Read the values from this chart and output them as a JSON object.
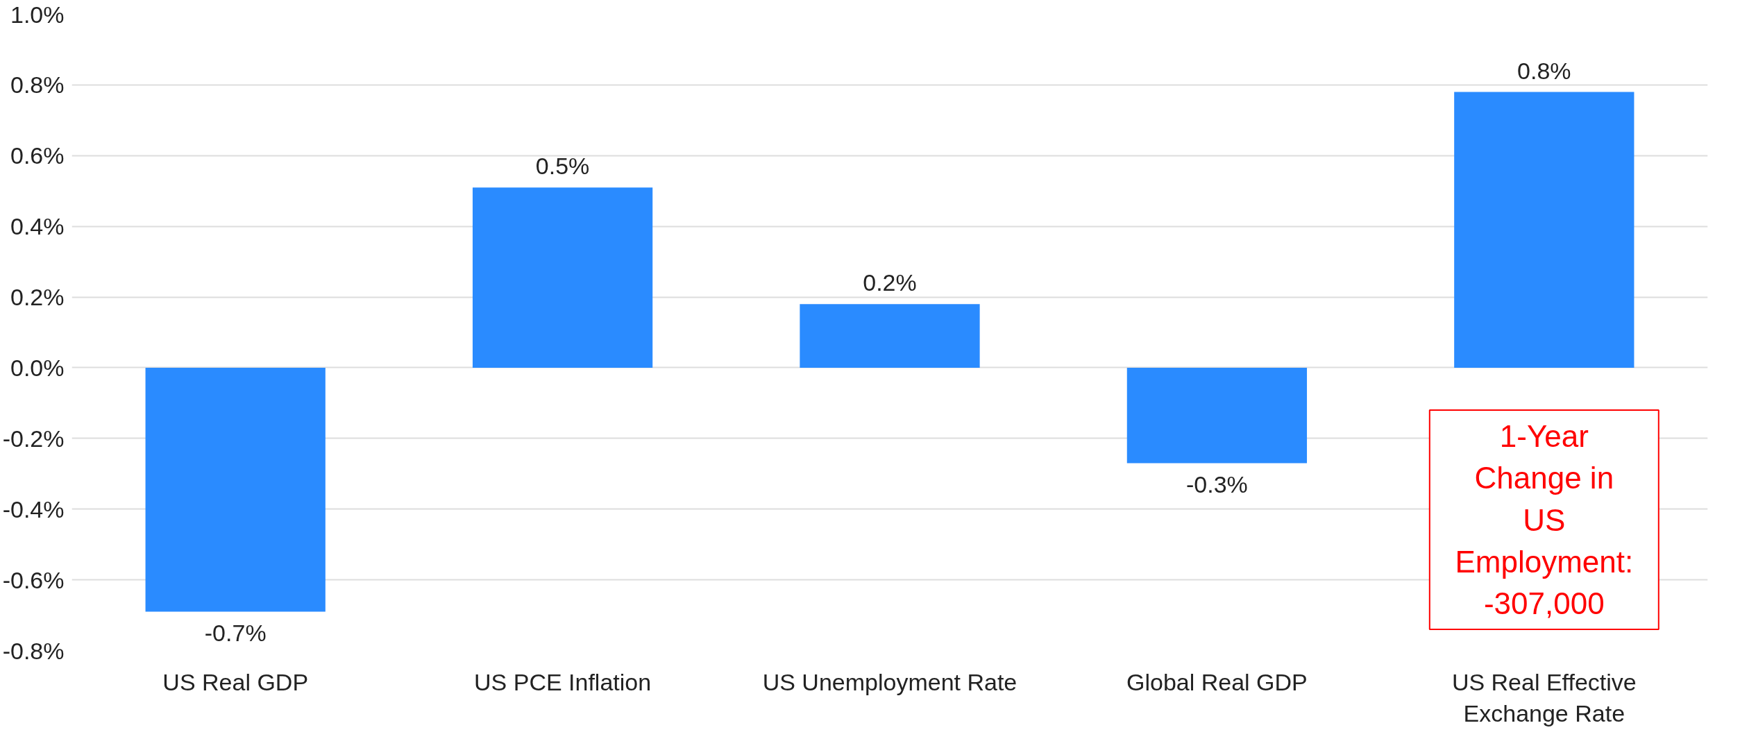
{
  "chart_data": {
    "type": "bar",
    "categories": [
      "US Real GDP",
      "US PCE Inflation",
      "US Unemployment Rate",
      "Global Real GDP",
      "US Real Effective Exchange Rate"
    ],
    "values": [
      -0.69,
      0.51,
      0.18,
      -0.27,
      0.78
    ],
    "value_labels": [
      "-0.7%",
      "0.5%",
      "0.2%",
      "-0.3%",
      "0.8%"
    ],
    "color": "#2a8bff",
    "ylim": [
      -0.8,
      1.0
    ],
    "yticks": [
      {
        "value": -0.8,
        "label": "-0.8%"
      },
      {
        "value": -0.6,
        "label": "-0.6%"
      },
      {
        "value": -0.4,
        "label": "-0.4%"
      },
      {
        "value": -0.2,
        "label": "-0.2%"
      },
      {
        "value": 0,
        "label": "0.0%"
      },
      {
        "value": 0.2,
        "label": "0.2%"
      },
      {
        "value": 0.4,
        "label": "0.4%"
      },
      {
        "value": 0.6,
        "label": "0.6%"
      },
      {
        "value": 0.8,
        "label": "0.8%"
      },
      {
        "value": 1.0,
        "label": "1.0%"
      }
    ],
    "grid": "y",
    "annotations": [
      "1-Year Change in US Employment: -307,000"
    ]
  }
}
